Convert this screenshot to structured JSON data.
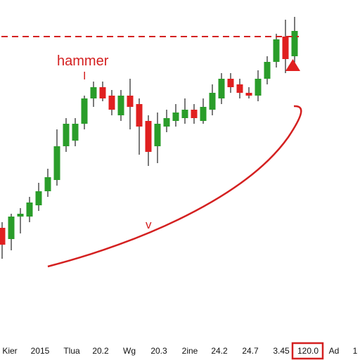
{
  "chart_data": {
    "type": "candlestick",
    "title": "",
    "xlabel": "",
    "ylabel": "",
    "ylim": [
      0,
      100
    ],
    "grid": false,
    "legend": "none",
    "colors": {
      "up": "#2a9d2a",
      "down": "#e02020",
      "annotation": "#d42020",
      "axis_text": "#111111",
      "highlight_box": "#d42020"
    },
    "x_tick_labels": [
      "Kier",
      "2015",
      "Tlua",
      "20.2",
      "Wg",
      "20.3",
      "2ine",
      "24.2",
      "24.7",
      "3.45",
      "120.0",
      "Ad",
      "1"
    ],
    "highlighted_tick": "120.0",
    "candles": [
      {
        "open": 29,
        "close": 23,
        "high": 31,
        "low": 18
      },
      {
        "open": 25,
        "close": 33,
        "high": 34,
        "low": 21
      },
      {
        "open": 33,
        "close": 34,
        "high": 36,
        "low": 27
      },
      {
        "open": 33,
        "close": 38,
        "high": 40,
        "low": 31
      },
      {
        "open": 37,
        "close": 42,
        "high": 45,
        "low": 35
      },
      {
        "open": 42,
        "close": 47,
        "high": 50,
        "low": 40
      },
      {
        "open": 46,
        "close": 58,
        "high": 64,
        "low": 44
      },
      {
        "open": 58,
        "close": 66,
        "high": 68,
        "low": 56
      },
      {
        "open": 60,
        "close": 66,
        "high": 68,
        "low": 58
      },
      {
        "open": 66,
        "close": 75,
        "high": 76,
        "low": 64
      },
      {
        "open": 75,
        "close": 79,
        "high": 81,
        "low": 72
      },
      {
        "open": 79,
        "close": 75,
        "high": 81,
        "low": 74
      },
      {
        "open": 76,
        "close": 71,
        "high": 78,
        "low": 69
      },
      {
        "open": 69,
        "close": 76,
        "high": 78,
        "low": 67
      },
      {
        "open": 76,
        "close": 72,
        "high": 82,
        "low": 64
      },
      {
        "open": 73,
        "close": 65,
        "high": 75,
        "low": 55
      },
      {
        "open": 67,
        "close": 56,
        "high": 69,
        "low": 51
      },
      {
        "open": 58,
        "close": 66,
        "high": 70,
        "low": 52
      },
      {
        "open": 65,
        "close": 68,
        "high": 71,
        "low": 63
      },
      {
        "open": 67,
        "close": 70,
        "high": 73,
        "low": 65
      },
      {
        "open": 68,
        "close": 71,
        "high": 75,
        "low": 66
      },
      {
        "open": 71,
        "close": 68,
        "high": 73,
        "low": 66
      },
      {
        "open": 67,
        "close": 72,
        "high": 75,
        "low": 66
      },
      {
        "open": 71,
        "close": 77,
        "high": 80,
        "low": 69
      },
      {
        "open": 75,
        "close": 82,
        "high": 84,
        "low": 73
      },
      {
        "open": 82,
        "close": 79,
        "high": 84,
        "low": 77
      },
      {
        "open": 80,
        "close": 77,
        "high": 82,
        "low": 75
      },
      {
        "open": 77,
        "close": 76,
        "high": 79,
        "low": 75
      },
      {
        "open": 76,
        "close": 82,
        "high": 85,
        "low": 74
      },
      {
        "open": 82,
        "close": 88,
        "high": 90,
        "low": 80
      },
      {
        "open": 88,
        "close": 96,
        "high": 98,
        "low": 86
      },
      {
        "open": 97,
        "close": 89,
        "high": 103,
        "low": 84
      },
      {
        "open": 90,
        "close": 99,
        "high": 104,
        "low": 85
      }
    ],
    "annotations": {
      "hammer_label": "hammer",
      "hammer_marker": "I",
      "trough_label": "v",
      "resistance_level": 97
    }
  }
}
